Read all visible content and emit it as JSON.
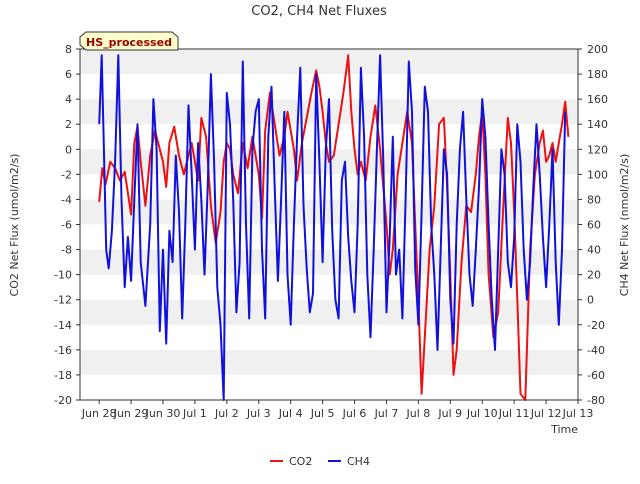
{
  "chart_data": {
    "type": "line",
    "title": "CO2, CH4 Net Fluxes",
    "xlabel": "Time",
    "ylabel_left": "CO2 Net Flux (umol/m2/s)",
    "ylabel_right": "CH4 Net Flux (nmol/m2/s)",
    "badge": "HS_processed",
    "x_ticks": [
      "Jun 28",
      "Jun 29",
      "Jun 30",
      "Jul 1",
      "Jul 2",
      "Jul 3",
      "Jul 4",
      "Jul 5",
      "Jul 6",
      "Jul 7",
      "Jul 8",
      "Jul 9",
      "Jul 10",
      "Jul 11",
      "Jul 12",
      "Jul 13"
    ],
    "xlim": [
      -0.6,
      15
    ],
    "ylim_left": [
      -20,
      8
    ],
    "ylim_right": [
      -80,
      200
    ],
    "y_ticks_left": [
      -20,
      -18,
      -16,
      -14,
      -12,
      -10,
      -8,
      -6,
      -4,
      -2,
      0,
      2,
      4,
      6,
      8
    ],
    "y_ticks_right": [
      -80,
      -60,
      -40,
      -20,
      0,
      20,
      40,
      60,
      80,
      100,
      120,
      140,
      160,
      180,
      200
    ],
    "legend_position": "bottom-center",
    "grid": "horizontal bands",
    "series": [
      {
        "name": "CO2",
        "axis": "left",
        "color": "#ee1111",
        "x": [
          0.0,
          0.1,
          0.2,
          0.35,
          0.5,
          0.65,
          0.8,
          0.9,
          1.0,
          1.1,
          1.2,
          1.3,
          1.45,
          1.6,
          1.75,
          1.9,
          2.0,
          2.1,
          2.2,
          2.35,
          2.5,
          2.65,
          2.8,
          2.9,
          3.0,
          3.1,
          3.2,
          3.35,
          3.5,
          3.65,
          3.8,
          3.9,
          4.0,
          4.1,
          4.2,
          4.35,
          4.5,
          4.65,
          4.8,
          4.9,
          5.0,
          5.1,
          5.2,
          5.35,
          5.5,
          5.65,
          5.8,
          5.9,
          6.0,
          6.1,
          6.2,
          6.35,
          6.5,
          6.65,
          6.8,
          6.9,
          7.0,
          7.1,
          7.2,
          7.35,
          7.5,
          7.65,
          7.8,
          7.9,
          8.0,
          8.1,
          8.2,
          8.35,
          8.5,
          8.65,
          8.8,
          8.9,
          9.0,
          9.1,
          9.2,
          9.35,
          9.5,
          9.65,
          9.8,
          9.9,
          10.0,
          10.1,
          10.2,
          10.35,
          10.5,
          10.65,
          10.8,
          10.9,
          11.0,
          11.1,
          11.2,
          11.35,
          11.5,
          11.65,
          11.8,
          11.9,
          12.0,
          12.1,
          12.2,
          12.35,
          12.5,
          12.65,
          12.8,
          12.9,
          13.0,
          13.1,
          13.2,
          13.35,
          13.5,
          13.65,
          13.8,
          13.9,
          14.0,
          14.1,
          14.2
        ],
        "values": [
          -4.2,
          -1.5,
          -2.8,
          -1.0,
          -1.5,
          -2.5,
          -1.8,
          -3.5,
          -5.2,
          0.5,
          1.8,
          -1.0,
          -4.5,
          -0.5,
          1.5,
          0.0,
          -1.0,
          -3.0,
          0.5,
          1.8,
          -0.5,
          -2.0,
          -0.5,
          0.5,
          -1.0,
          -2.5,
          2.5,
          1.0,
          -4.5,
          -7.5,
          -5.0,
          -1.0,
          0.5,
          0.0,
          -2.0,
          -3.5,
          0.5,
          -1.5,
          1.0,
          -0.5,
          -2.0,
          -5.5,
          1.5,
          4.5,
          2.0,
          -0.5,
          1.0,
          3.0,
          1.5,
          0.0,
          -2.5,
          0.5,
          2.5,
          4.5,
          6.3,
          5.0,
          3.0,
          0.5,
          -1.0,
          -0.5,
          2.0,
          4.5,
          7.5,
          3.0,
          0.0,
          -2.0,
          -1.0,
          -2.5,
          1.0,
          3.5,
          0.0,
          -3.0,
          -6.0,
          -10.0,
          -8.0,
          -2.0,
          0.5,
          3.0,
          0.5,
          -6.0,
          -12.0,
          -19.5,
          -15.0,
          -8.0,
          -4.5,
          2.0,
          2.5,
          -3.0,
          -10.0,
          -18.0,
          -16.0,
          -9.0,
          -4.5,
          -5.0,
          -2.0,
          1.0,
          3.0,
          -2.0,
          -10.0,
          -15.0,
          -13.0,
          -5.0,
          2.5,
          0.5,
          -5.0,
          -12.0,
          -19.5,
          -20.0,
          -8.0,
          -2.0,
          0.5,
          1.5,
          -1.0,
          -0.5,
          0.5
        ],
        "more_x": [
          14.3,
          14.4,
          14.5,
          14.6,
          14.7
        ],
        "more_values": [
          -1.0,
          0.5,
          2.0,
          3.8,
          1.0
        ]
      },
      {
        "name": "CH4",
        "axis": "right",
        "color": "#1111dd",
        "x": [
          0.0,
          0.08,
          0.15,
          0.22,
          0.3,
          0.4,
          0.5,
          0.6,
          0.7,
          0.8,
          0.9,
          1.0,
          1.1,
          1.2,
          1.3,
          1.45,
          1.6,
          1.7,
          1.8,
          1.9,
          2.0,
          2.1,
          2.2,
          2.3,
          2.4,
          2.5,
          2.6,
          2.7,
          2.8,
          2.9,
          3.0,
          3.1,
          3.2,
          3.3,
          3.4,
          3.5,
          3.6,
          3.7,
          3.8,
          3.9,
          4.0,
          4.1,
          4.2,
          4.3,
          4.4,
          4.5,
          4.6,
          4.7,
          4.8,
          4.9,
          5.0,
          5.1,
          5.2,
          5.3,
          5.4,
          5.5,
          5.6,
          5.7,
          5.8,
          5.9,
          6.0,
          6.1,
          6.2,
          6.3,
          6.4,
          6.5,
          6.6,
          6.7,
          6.8,
          6.9,
          7.0,
          7.1,
          7.2,
          7.3,
          7.4,
          7.5,
          7.6,
          7.7,
          7.8,
          7.9,
          8.0,
          8.1,
          8.2,
          8.3,
          8.4,
          8.5,
          8.6,
          8.7,
          8.8,
          8.9,
          9.0,
          9.1,
          9.2,
          9.3,
          9.4,
          9.5,
          9.6,
          9.7,
          9.8,
          9.9,
          10.0,
          10.1,
          10.2,
          10.3,
          10.4,
          10.5,
          10.6,
          10.7,
          10.8,
          10.9,
          11.0,
          11.1,
          11.2,
          11.3,
          11.4,
          11.5,
          11.6,
          11.7,
          11.8,
          11.9,
          12.0,
          12.1,
          12.2,
          12.3,
          12.4,
          12.5,
          12.6,
          12.7,
          12.8,
          12.9,
          13.0,
          13.1,
          13.2,
          13.3,
          13.4,
          13.5,
          13.6,
          13.7,
          13.8,
          13.9,
          14.0,
          14.1,
          14.2,
          14.3,
          14.4,
          14.5,
          14.6
        ],
        "values": [
          140,
          195,
          120,
          40,
          25,
          55,
          110,
          195,
          80,
          10,
          50,
          15,
          80,
          140,
          30,
          -5,
          60,
          160,
          120,
          -25,
          40,
          -35,
          55,
          30,
          115,
          70,
          -15,
          60,
          155,
          100,
          40,
          125,
          80,
          20,
          90,
          180,
          110,
          10,
          -20,
          -80,
          165,
          140,
          80,
          -10,
          30,
          190,
          60,
          -15,
          120,
          150,
          160,
          40,
          -15,
          130,
          170,
          90,
          15,
          80,
          150,
          20,
          -20,
          60,
          130,
          185,
          75,
          25,
          -10,
          5,
          180,
          110,
          30,
          120,
          160,
          55,
          0,
          -15,
          95,
          110,
          50,
          15,
          -10,
          60,
          185,
          130,
          20,
          -30,
          40,
          120,
          195,
          110,
          -10,
          50,
          130,
          20,
          40,
          -15,
          80,
          190,
          150,
          25,
          -20,
          70,
          170,
          150,
          60,
          20,
          -40,
          40,
          120,
          100,
          0,
          -35,
          60,
          120,
          150,
          80,
          20,
          -5,
          40,
          90,
          160,
          130,
          60,
          0,
          -40,
          40,
          120,
          100,
          30,
          10,
          50,
          140,
          110,
          40,
          0,
          30,
          90,
          140,
          100,
          50,
          10,
          60,
          120,
          30,
          -20,
          40,
          150
        ]
      }
    ]
  }
}
